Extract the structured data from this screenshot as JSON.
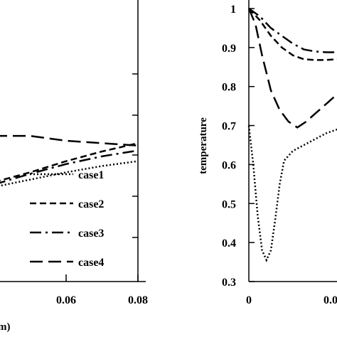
{
  "chart_data": [
    {
      "type": "line",
      "xlabel_visible": "m)",
      "xlim": [
        0.04,
        0.08
      ],
      "xticks": [
        "0.06",
        "0.08"
      ],
      "legend_placement": "bottom-right",
      "series": [
        {
          "name": "case1",
          "style": "dotted",
          "x": [
            0.04,
            0.05,
            0.06,
            0.07,
            0.08
          ],
          "y": [
            0.695,
            0.71,
            0.725,
            0.738,
            0.748
          ]
        },
        {
          "name": "case2",
          "style": "dashed",
          "x": [
            0.04,
            0.05,
            0.06,
            0.07,
            0.08
          ],
          "y": [
            0.705,
            0.725,
            0.748,
            0.768,
            0.785
          ]
        },
        {
          "name": "case3",
          "style": "dash-dot",
          "x": [
            0.04,
            0.05,
            0.06,
            0.07,
            0.08
          ],
          "y": [
            0.7,
            0.722,
            0.742,
            0.758,
            0.77
          ]
        },
        {
          "name": "case4",
          "style": "long-dashed",
          "x": [
            0.04,
            0.05,
            0.06,
            0.07,
            0.08
          ],
          "y": [
            0.8,
            0.8,
            0.79,
            0.785,
            0.78
          ]
        }
      ]
    },
    {
      "type": "line",
      "ylabel": "temperature",
      "ylim": [
        0.3,
        1.0
      ],
      "yticks": [
        "0.3",
        "0.4",
        "0.5",
        "0.6",
        "0.7",
        "0.8",
        "0.9",
        "1"
      ],
      "xticks": [
        "0",
        "0.0"
      ],
      "series": [
        {
          "style": "dotted",
          "x": [
            0,
            0.002,
            0.004,
            0.006,
            0.008,
            0.01,
            0.012,
            0.014,
            0.016,
            0.02,
            0.025,
            0.03,
            0.035,
            0.04
          ],
          "y": [
            0.7,
            0.6,
            0.47,
            0.38,
            0.355,
            0.38,
            0.46,
            0.55,
            0.61,
            0.635,
            0.65,
            0.665,
            0.68,
            0.69
          ]
        },
        {
          "style": "long-dashed",
          "x": [
            0,
            0.003,
            0.006,
            0.01,
            0.014,
            0.018,
            0.022,
            0.026,
            0.03,
            0.035,
            0.04
          ],
          "y": [
            1.0,
            0.96,
            0.88,
            0.79,
            0.74,
            0.71,
            0.695,
            0.71,
            0.73,
            0.755,
            0.78
          ]
        },
        {
          "style": "dash-dot",
          "x": [
            0,
            0.005,
            0.01,
            0.015,
            0.02,
            0.025,
            0.03,
            0.035,
            0.04
          ],
          "y": [
            1.0,
            0.98,
            0.95,
            0.93,
            0.91,
            0.895,
            0.89,
            0.888,
            0.888
          ]
        },
        {
          "style": "dashed",
          "x": [
            0,
            0.005,
            0.01,
            0.015,
            0.02,
            0.025,
            0.03,
            0.035,
            0.04
          ],
          "y": [
            1.0,
            0.97,
            0.93,
            0.9,
            0.88,
            0.87,
            0.868,
            0.868,
            0.87
          ]
        }
      ]
    }
  ]
}
